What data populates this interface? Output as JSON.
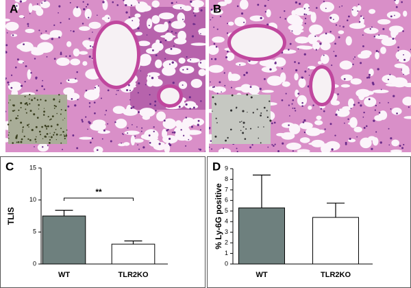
{
  "panels": [
    {
      "label": "A"
    },
    {
      "label": "B"
    }
  ],
  "chart_data": [
    {
      "type": "bar",
      "label": "C",
      "ylabel": "TLIS",
      "categories": [
        "WT",
        "TLR2KO"
      ],
      "values": [
        7.5,
        3.1
      ],
      "errors": [
        0.9,
        0.5
      ],
      "colors": [
        "#6e807e",
        "#ffffff"
      ],
      "ylim": [
        0,
        15
      ],
      "yticks": [
        0,
        5,
        10,
        15
      ],
      "annotation": {
        "text": "**",
        "y": 10.3
      }
    },
    {
      "type": "bar",
      "label": "D",
      "ylabel": "% Ly-6G positive",
      "categories": [
        "WT",
        "TLR2KO"
      ],
      "values": [
        5.3,
        4.4
      ],
      "errors": [
        3.1,
        1.35
      ],
      "colors": [
        "#6e807e",
        "#ffffff"
      ],
      "ylim": [
        0,
        9
      ],
      "yticks": [
        0,
        1,
        2,
        3,
        4,
        5,
        6,
        7,
        8,
        9
      ]
    }
  ]
}
